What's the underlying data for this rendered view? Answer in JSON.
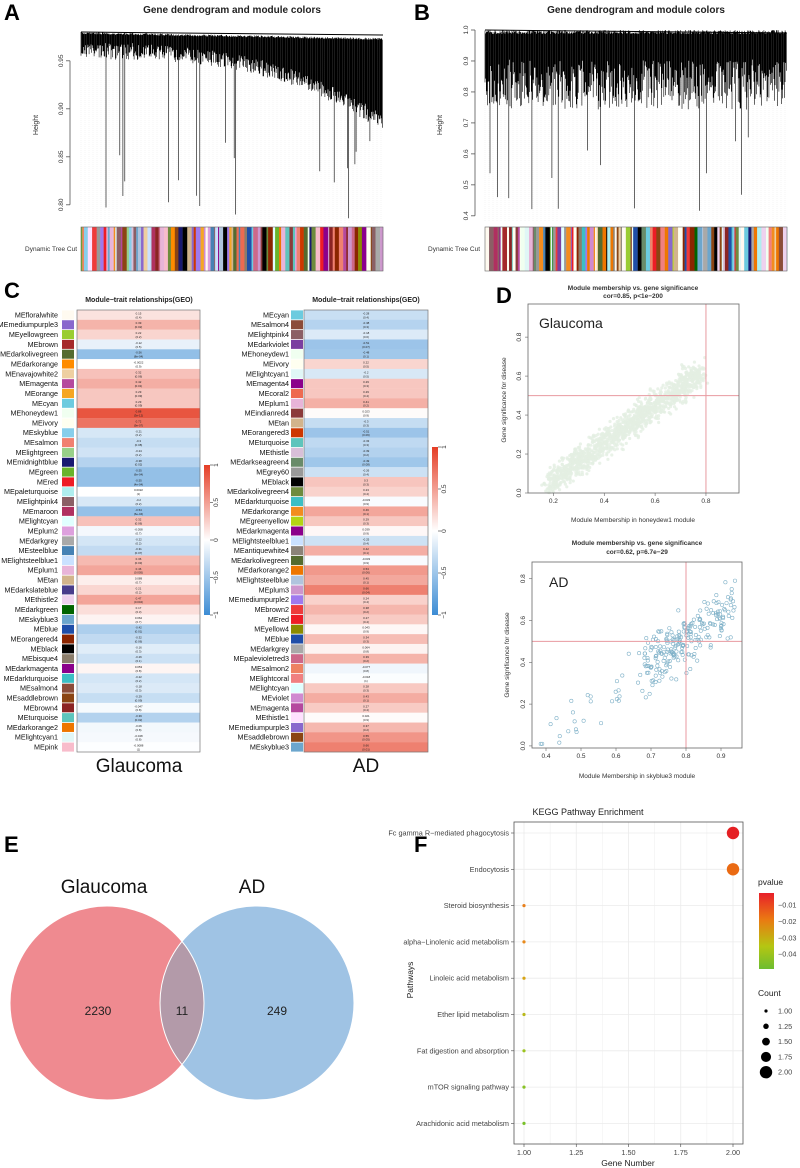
{
  "panels": {
    "A": "A",
    "B": "B",
    "C": "C",
    "D": "D",
    "E": "E",
    "F": "F"
  },
  "chart_data": [
    {
      "id": "A",
      "type": "dendrogram",
      "title": "Gene dendrogram and module colors",
      "ylabel": "Height",
      "yticks": [
        "0.95",
        "0.90",
        "0.85",
        "0.80"
      ],
      "ylim": [
        0.78,
        0.98
      ],
      "colorbar_label": "Dynamic Tree Cut"
    },
    {
      "id": "B",
      "type": "dendrogram",
      "title": "Gene dendrogram and module colors",
      "ylabel": "Height",
      "yticks": [
        "1.0",
        "0.9",
        "0.8",
        "0.7",
        "0.6",
        "0.5",
        "0.4"
      ],
      "ylim": [
        0.38,
        1.0
      ],
      "colorbar_label": "Dynamic Tree Cut"
    },
    {
      "id": "C-glaucoma",
      "type": "heatmap",
      "title": "Module−trait relationships(GEO)",
      "label": "Glaucoma",
      "colorbar_ticks": [
        "1",
        "0.5",
        "0",
        "−0.5",
        "−1"
      ],
      "rows": [
        {
          "m": "MEfloralwhite",
          "c": "#fffaf0",
          "v": 0.15,
          "p": "(0.4)"
        },
        {
          "m": "MEmediumpurple3",
          "c": "#8968cd",
          "v": 0.39,
          "p": "(0.02)"
        },
        {
          "m": "MEyellowgreen",
          "c": "#9acd32",
          "v": 0.22,
          "p": "(0.2)"
        },
        {
          "m": "MEbrown",
          "c": "#a52a2a",
          "v": -0.12,
          "p": "(0.5)"
        },
        {
          "m": "MEdarkolivegreen",
          "c": "#556b2f",
          "v": -0.56,
          "p": "(8e-04)"
        },
        {
          "m": "MEdarkorange",
          "c": "#ff8c00",
          "v": -0.0022,
          "p": "(0.9)"
        },
        {
          "m": "MEnavajowhite2",
          "c": "#eecfa1",
          "v": 0.32,
          "p": "(0.06)"
        },
        {
          "m": "MEmagenta",
          "c": "#b5499e",
          "v": 0.42,
          "p": "(0.01)"
        },
        {
          "m": "MEorange",
          "c": "#f5a623",
          "v": 0.29,
          "p": "(0.09)"
        },
        {
          "m": "MEcyan",
          "c": "#6ccbdf",
          "v": 0.29,
          "p": "(0.09)"
        },
        {
          "m": "MEhoneydew1",
          "c": "#f0fff0",
          "v": 0.88,
          "p": "(3e-12)"
        },
        {
          "m": "MEivory",
          "c": "#fffff0",
          "v": 0.72,
          "p": "(9e-07)"
        },
        {
          "m": "MEskyblue",
          "c": "#87ceeb",
          "v": -0.21,
          "p": "(0.2)"
        },
        {
          "m": "MEsalmon",
          "c": "#f08070",
          "v": -0.3,
          "p": "(0.08)"
        },
        {
          "m": "MElightgreen",
          "c": "#98d088",
          "v": -0.24,
          "p": "(0.2)"
        },
        {
          "m": "MEmidnightblue",
          "c": "#191970",
          "v": -0.38,
          "p": "(0.02)"
        },
        {
          "m": "MEgreen",
          "c": "#6ab42c",
          "v": -0.55,
          "p": "(6e-04)"
        },
        {
          "m": "MEred",
          "c": "#ee1c25",
          "v": -0.55,
          "p": "(4e-04)"
        },
        {
          "m": "MEpaleturquoise",
          "c": "#afeeee",
          "v": 0.0022,
          "p": "(1)"
        },
        {
          "m": "MElightpink4",
          "c": "#8b5f65",
          "v": -0.2,
          "p": "(0.2)"
        },
        {
          "m": "MEmaroon",
          "c": "#b03060",
          "v": -0.54,
          "p": "(6e-04)"
        },
        {
          "m": "MElightcyan",
          "c": "#e0ffff",
          "v": 0.32,
          "p": "(0.06)"
        },
        {
          "m": "MEplum2",
          "c": "#dda0dd",
          "v": -0.058,
          "p": "(0.7)"
        },
        {
          "m": "MEdarkgrey",
          "c": "#a9a9a9",
          "v": -0.22,
          "p": "(0.2)"
        },
        {
          "m": "MEsteelblue",
          "c": "#4682b4",
          "v": -0.31,
          "p": "(0.07)"
        },
        {
          "m": "MElightsteelblue1",
          "c": "#cae1ff",
          "v": 0.36,
          "p": "(0.03)"
        },
        {
          "m": "MEplum1",
          "c": "#e8b4d8",
          "v": 0.46,
          "p": "(0.005)"
        },
        {
          "m": "MEtan",
          "c": "#d2b48c",
          "v": 0.089,
          "p": "(0.7)"
        },
        {
          "m": "MEdarkslateblue",
          "c": "#483d8b",
          "v": 0.21,
          "p": "(0.2)"
        },
        {
          "m": "MEthistle2",
          "c": "#eed2ee",
          "v": 0.47,
          "p": "(0.004)"
        },
        {
          "m": "MEdarkgreen",
          "c": "#006400",
          "v": 0.17,
          "p": "(0.3)"
        },
        {
          "m": "MEskyblue3",
          "c": "#6ca6cd",
          "v": 0.062,
          "p": "(0.7)"
        },
        {
          "m": "MEblue",
          "c": "#1f4ea8",
          "v": -0.42,
          "p": "(0.01)"
        },
        {
          "m": "MEorangered4",
          "c": "#8b2500",
          "v": -0.32,
          "p": "(0.06)"
        },
        {
          "m": "MEblack",
          "c": "#000000",
          "v": -0.16,
          "p": "(0.3)"
        },
        {
          "m": "MEbisque4",
          "c": "#8b7d6b",
          "v": -0.26,
          "p": "(0.1)"
        },
        {
          "m": "MEdarkmagenta",
          "c": "#8b008b",
          "v": 0.053,
          "p": "(0.8)"
        },
        {
          "m": "MEdarkturquoise",
          "c": "#3cbfc4",
          "v": -0.22,
          "p": "(0.2)"
        },
        {
          "m": "MEsalmon4",
          "c": "#8b4c39",
          "v": -0.18,
          "p": "(0.3)"
        },
        {
          "m": "MEsaddlebrown",
          "c": "#8b4513",
          "v": -0.29,
          "p": "(0.09)"
        },
        {
          "m": "MEbrown4",
          "c": "#8b2323",
          "v": -0.047,
          "p": "(0.8)"
        },
        {
          "m": "MEturquoise",
          "c": "#5ec4bc",
          "v": -0.39,
          "p": "(0.02)"
        },
        {
          "m": "MEdarkorange2",
          "c": "#ee7600",
          "v": -0.06,
          "p": "(0.8)"
        },
        {
          "m": "MElightcyan1",
          "c": "#e0f6f6",
          "v": -0.048,
          "p": "(0.8)"
        },
        {
          "m": "MEpink",
          "c": "#f8bccb",
          "v": -0.0088,
          "p": "(1)"
        }
      ]
    },
    {
      "id": "C-ad",
      "type": "heatmap",
      "title": "Module−trait relationships(GEO)",
      "label": "AD",
      "colorbar_ticks": [
        "1",
        "0.5",
        "0",
        "−0.5",
        "−1"
      ],
      "rows": [
        {
          "m": "MEcyan",
          "c": "#6ccbdf",
          "v": -0.28,
          "p": "(0.4)"
        },
        {
          "m": "MEsalmon4",
          "c": "#8b4c39",
          "v": -0.38,
          "p": "(0.3)"
        },
        {
          "m": "MElightpink4",
          "c": "#8b5f65",
          "v": -0.18,
          "p": "(0.6)"
        },
        {
          "m": "MEdarkviolet",
          "c": "#7b3fa0",
          "v": -0.51,
          "p": "(0.07)"
        },
        {
          "m": "MEhoneydew1",
          "c": "#f0fff0",
          "v": -0.48,
          "p": "(0.1)"
        },
        {
          "m": "MEivory",
          "c": "#fffff0",
          "v": 0.22,
          "p": "(0.5)"
        },
        {
          "m": "MElightcyan1",
          "c": "#e0f6f6",
          "v": -0.2,
          "p": "(0.5)"
        },
        {
          "m": "MEmagenta4",
          "c": "#8b008b",
          "v": 0.29,
          "p": "(0.3)"
        },
        {
          "m": "MEcoral2",
          "c": "#ee6a50",
          "v": 0.29,
          "p": "(0.4)"
        },
        {
          "m": "MEplum1",
          "c": "#e8b4d8",
          "v": 0.41,
          "p": "(0.2)"
        },
        {
          "m": "MEindianred4",
          "c": "#8b3a3a",
          "v": 0.023,
          "p": "(0.9)"
        },
        {
          "m": "MEtan",
          "c": "#d2b48c",
          "v": -0.3,
          "p": "(0.3)"
        },
        {
          "m": "MEorangered3",
          "c": "#cd3700",
          "v": -0.51,
          "p": "(0.06)"
        },
        {
          "m": "MEturquoise",
          "c": "#5ec4bc",
          "v": -0.33,
          "p": "(0.3)"
        },
        {
          "m": "MEthistle",
          "c": "#d8bfd8",
          "v": -0.39,
          "p": "(0.2)"
        },
        {
          "m": "MEdarkseagreen4",
          "c": "#698b69",
          "v": -0.49,
          "p": "(0.08)"
        },
        {
          "m": "MEgrey60",
          "c": "#999999",
          "v": -0.26,
          "p": "(0.4)"
        },
        {
          "m": "MEblack",
          "c": "#000000",
          "v": 0.3,
          "p": "(0.3)"
        },
        {
          "m": "MEdarkolivegreen4",
          "c": "#6e8b3d",
          "v": 0.23,
          "p": "(0.4)"
        },
        {
          "m": "MEdarkturquoise",
          "c": "#3cbfc4",
          "v": -0.033,
          "p": "(0.9)"
        },
        {
          "m": "MEdarkorange",
          "c": "#f28c1e",
          "v": 0.46,
          "p": "(0.1)"
        },
        {
          "m": "MEgreenyellow",
          "c": "#b4d414",
          "v": 0.29,
          "p": "(0.3)"
        },
        {
          "m": "MEdarkmagenta",
          "c": "#8b008b",
          "v": 0.039,
          "p": "(0.9)"
        },
        {
          "m": "MElightsteelblue1",
          "c": "#cae1ff",
          "v": -0.25,
          "p": "(0.4)"
        },
        {
          "m": "MEantiquewhite4",
          "c": "#8b8378",
          "v": 0.42,
          "p": "(0.1)"
        },
        {
          "m": "MEdarkolivegreen",
          "c": "#556b2f",
          "v": -0.033,
          "p": "(0.9)"
        },
        {
          "m": "MEdarkorange2",
          "c": "#ee7600",
          "v": 0.53,
          "p": "(0.06)"
        },
        {
          "m": "MElightsteelblue",
          "c": "#b0c4de",
          "v": 0.45,
          "p": "(0.1)"
        },
        {
          "m": "MEplum3",
          "c": "#cd96cd",
          "v": 0.66,
          "p": "(0.04)"
        },
        {
          "m": "MEmediumpurple2",
          "c": "#9f79ee",
          "v": 0.24,
          "p": "(0.4)"
        },
        {
          "m": "MEbrown2",
          "c": "#ee3b3b",
          "v": 0.38,
          "p": "(0.2)"
        },
        {
          "m": "MEred",
          "c": "#ee1c25",
          "v": 0.27,
          "p": "(0.4)"
        },
        {
          "m": "MEyellow4",
          "c": "#8b8b00",
          "v": 0.043,
          "p": "(0.9)"
        },
        {
          "m": "MEblue",
          "c": "#1f4ea8",
          "v": 0.34,
          "p": "(0.3)"
        },
        {
          "m": "MEdarkgrey",
          "c": "#a9a9a9",
          "v": 0.064,
          "p": "(0.8)"
        },
        {
          "m": "MEpalevioletred3",
          "c": "#cd6889",
          "v": 0.39,
          "p": "(0.2)"
        },
        {
          "m": "MEsalmon2",
          "c": "#ee8262",
          "v": -0.077,
          "p": "(0.8)"
        },
        {
          "m": "MElightcoral",
          "c": "#f08080",
          "v": -0.018,
          "p": "(1)"
        },
        {
          "m": "MElightcyan",
          "c": "#e0ffff",
          "v": 0.28,
          "p": "(0.3)"
        },
        {
          "m": "MEviolet",
          "c": "#d08ad0",
          "v": 0.43,
          "p": "(0.1)"
        },
        {
          "m": "MEmagenta",
          "c": "#b5499e",
          "v": 0.27,
          "p": "(0.4)"
        },
        {
          "m": "MEthistle1",
          "c": "#ffe1ff",
          "v": 0.021,
          "p": "(0.9)"
        },
        {
          "m": "MEmediumpurple3",
          "c": "#8968cd",
          "v": 0.37,
          "p": "(0.2)"
        },
        {
          "m": "MEsaddlebrown",
          "c": "#8b4513",
          "v": 0.55,
          "p": "(0.05)"
        },
        {
          "m": "MEskyblue3",
          "c": "#6ca6cd",
          "v": 0.66,
          "p": "(0.01)"
        }
      ]
    },
    {
      "id": "D-glaucoma",
      "type": "scatter",
      "title": "Module membership vs. gene significance",
      "subtitle": "cor=0.85, p<1e−200",
      "inset_label": "Glaucoma",
      "xlabel": "Module Membership in honeydew1 module",
      "ylabel": "Gene significance for  disease",
      "xticks": [
        "0.2",
        "0.4",
        "0.6",
        "0.8"
      ],
      "yticks": [
        "0.0",
        "0.2",
        "0.4",
        "0.6",
        "0.8"
      ],
      "xlim": [
        0.1,
        0.93
      ],
      "ylim": [
        0.0,
        0.97
      ],
      "cor": 0.85,
      "threshold_x": 0.8,
      "threshold_y": 0.5,
      "point_color": "#e4efe2"
    },
    {
      "id": "D-ad",
      "type": "scatter",
      "title": "Module membership vs. gene significance",
      "subtitle": "cor=0.62, p=6.7e−29",
      "inset_label": "AD",
      "xlabel": "Module Membership in skyblue3 module",
      "ylabel": "Gene significance for  disease",
      "xticks": [
        "0.4",
        "0.5",
        "0.6",
        "0.7",
        "0.8",
        "0.9"
      ],
      "yticks": [
        "0.0",
        "0.2",
        "0.4",
        "0.6",
        "0.8"
      ],
      "xlim": [
        0.36,
        0.96
      ],
      "ylim": [
        -0.01,
        0.88
      ],
      "cor": 0.62,
      "threshold_x": 0.8,
      "threshold_y": 0.5,
      "point_color": "#7fb1c8"
    },
    {
      "id": "E",
      "type": "venn",
      "sets": [
        {
          "name": "Glaucoma",
          "only": "2230",
          "color": "#ef8a90"
        },
        {
          "name": "AD",
          "only": "249",
          "color": "#9fc3e4"
        }
      ],
      "intersection": "11",
      "intersection_color": "#b39aa9"
    },
    {
      "id": "F",
      "type": "scatter",
      "title": "KEGG Pathway Enrichment",
      "xlabel": "Gene Number",
      "ylabel": "Pathways",
      "xticks": [
        "1.00",
        "1.25",
        "1.50",
        "1.75",
        "2.00"
      ],
      "xlim": [
        0.95,
        2.05
      ],
      "categories": [
        "Fc gamma R−mediated phagocytosis",
        "Endocytosis",
        "Steroid biosynthesis",
        "alpha−Linolenic acid metabolism",
        "Linoleic acid metabolism",
        "Ether lipid metabolism",
        "Fat digestion and absorption",
        "mTOR signaling pathway",
        "Arachidonic acid metabolism"
      ],
      "values": [
        2,
        2,
        1,
        1,
        1,
        1,
        1,
        1,
        1
      ],
      "colors": [
        "#e51f23",
        "#ea6a13",
        "#e8801c",
        "#e88a1c",
        "#d7a414",
        "#b9b91c",
        "#9cc31f",
        "#88c225",
        "#79c12a"
      ],
      "legend_color_title": "pvalue",
      "legend_color_ticks": [
        "−0.01",
        "−0.02",
        "−0.03",
        "−0.04"
      ],
      "legend_size_title": "Count",
      "legend_size_ticks": [
        "1.00",
        "1.25",
        "1.50",
        "1.75",
        "2.00"
      ]
    }
  ]
}
